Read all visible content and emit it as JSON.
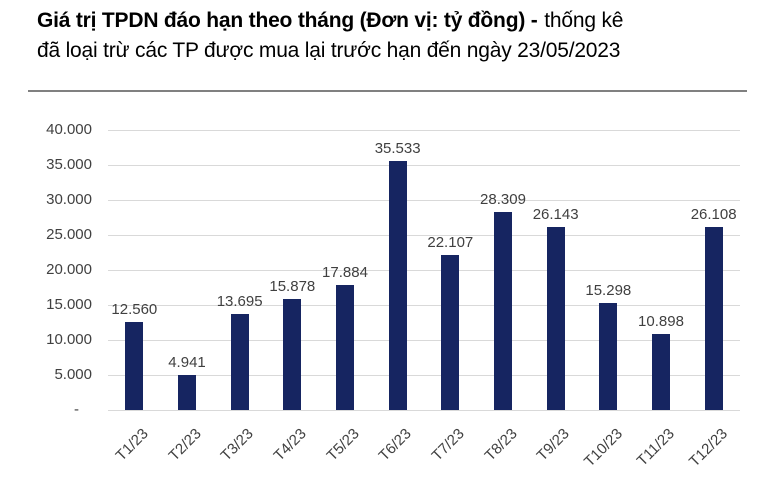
{
  "title": {
    "bold": "Giá trị TPDN đáo hạn theo tháng (Đơn vị: tỷ đồng) -",
    "regular_line1": "thống kê",
    "line2": "đã loại trừ các TP được mua lại trước hạn đến ngày 23/05/2023"
  },
  "chart_data": {
    "type": "bar",
    "title": "Giá trị TPDN đáo hạn theo tháng (Đơn vị: tỷ đồng) - thống kê đã loại trừ các TP được mua lại trước hạn đến ngày 23/05/2023",
    "categories": [
      "T1/23",
      "T2/23",
      "T3/23",
      "T4/23",
      "T5/23",
      "T6/23",
      "T7/23",
      "T8/23",
      "T9/23",
      "T10/23",
      "T11/23",
      "T12/23"
    ],
    "values": [
      12560,
      4941,
      13695,
      15878,
      17884,
      35533,
      22107,
      28309,
      26143,
      15298,
      10898,
      26108
    ],
    "value_labels": [
      "12.560",
      "4.941",
      "13.695",
      "15.878",
      "17.884",
      "35.533",
      "22.107",
      "28.309",
      "26.143",
      "15.298",
      "10.898",
      "26.108"
    ],
    "xlabel": "",
    "ylabel": "",
    "ylim": [
      0,
      40000
    ],
    "ytick_step": 5000,
    "ytick_labels_top_to_bottom": [
      "40.000",
      "35.000",
      "30.000",
      "25.000",
      "20.000",
      "15.000",
      "10.000",
      "5.000",
      "-"
    ],
    "grid": true,
    "legend": "none",
    "bar_color": "#162561",
    "gridline_color": "#D9D9D9",
    "axis_label_color": "#404040",
    "value_label_color": "#404040",
    "divider_color": "#808080"
  }
}
